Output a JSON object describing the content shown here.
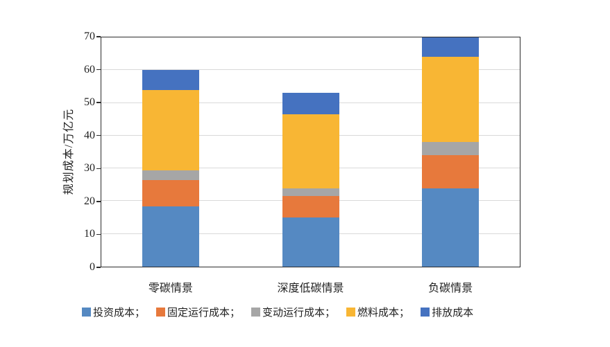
{
  "chart_data": {
    "type": "bar",
    "stacked": true,
    "title": "",
    "categories": [
      "零碳情景",
      "深度低碳情景",
      "负碳情景"
    ],
    "series": [
      {
        "name": "投资成本",
        "legend_label": "投资成本；",
        "color": "#5589C2",
        "values": [
          18.5,
          15,
          24
        ]
      },
      {
        "name": "固定运行成本",
        "legend_label": "固定运行成本；",
        "color": "#E7793C",
        "values": [
          8,
          6.5,
          10
        ]
      },
      {
        "name": "变动运行成本",
        "legend_label": "变动运行成本；",
        "color": "#A6A6A6",
        "values": [
          3,
          2.5,
          4
        ]
      },
      {
        "name": "燃料成本",
        "legend_label": "燃料成本；",
        "color": "#F8B634",
        "values": [
          24.5,
          22.5,
          26
        ]
      },
      {
        "name": "排放成本",
        "legend_label": "排放成本",
        "color": "#4572C0",
        "values": [
          6,
          6.5,
          6
        ]
      }
    ],
    "stack_totals": [
      60,
      53,
      70
    ],
    "xlabel": "",
    "ylabel": "规划成本/万亿元",
    "ylim": [
      0,
      70
    ],
    "yticks": [
      0,
      10,
      20,
      30,
      40,
      50,
      60,
      70
    ],
    "grid": "horizontal",
    "legend_position": "bottom"
  },
  "style": {
    "background": "#FFFFFF",
    "grid_color": "#D9D9D9",
    "axis_color": "#2B2B2B",
    "text_color": "#1F1F1F"
  }
}
